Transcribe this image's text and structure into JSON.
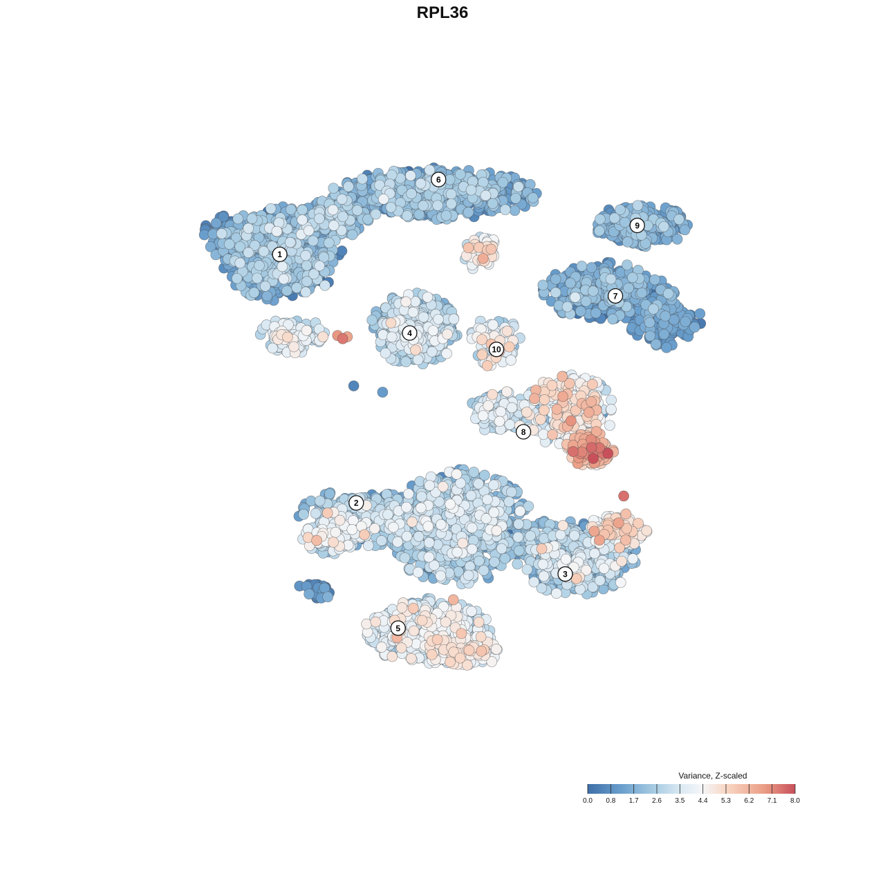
{
  "chart_data": {
    "type": "scatter",
    "title": "RPL36",
    "xlabel": "",
    "ylabel": "",
    "grid": false,
    "axes_visible": false,
    "xlim": [
      0,
      100
    ],
    "ylim": [
      0,
      100
    ],
    "legend": {
      "title": "Variance, Z-scaled",
      "placement": "bottom-right",
      "ticks": [
        "0.0",
        "0.8",
        "1.7",
        "2.6",
        "3.5",
        "4.4",
        "5.3",
        "6.2",
        "7.1",
        "8.0"
      ],
      "range": [
        0,
        8
      ]
    },
    "color_scale": {
      "stops": [
        {
          "value": 0.0,
          "color": "#3e6fa8"
        },
        {
          "value": 1.3,
          "color": "#6a9fcd"
        },
        {
          "value": 2.6,
          "color": "#a9cde3"
        },
        {
          "value": 3.6,
          "color": "#dbe9f3"
        },
        {
          "value": 4.4,
          "color": "#f4f6f8"
        },
        {
          "value": 5.4,
          "color": "#f8d5c2"
        },
        {
          "value": 6.8,
          "color": "#eb9e86"
        },
        {
          "value": 8.0,
          "color": "#c8505b"
        }
      ]
    },
    "clusters": [
      {
        "label": "1",
        "x": 22.0,
        "y": 79.9,
        "value": 1.6
      },
      {
        "label": "2",
        "x": 33.9,
        "y": 40.4,
        "value": 2.4
      },
      {
        "label": "3",
        "x": 66.4,
        "y": 29.1,
        "value": 2.2
      },
      {
        "label": "4",
        "x": 42.2,
        "y": 67.4,
        "value": 2.7
      },
      {
        "label": "5",
        "x": 40.4,
        "y": 20.5,
        "value": 3.0
      },
      {
        "label": "6",
        "x": 46.7,
        "y": 91.8,
        "value": 1.5
      },
      {
        "label": "7",
        "x": 74.2,
        "y": 73.3,
        "value": 1.3
      },
      {
        "label": "8",
        "x": 59.9,
        "y": 51.7,
        "value": 4.8
      },
      {
        "label": "9",
        "x": 77.6,
        "y": 84.5,
        "value": 1.6
      },
      {
        "label": "10",
        "x": 55.7,
        "y": 64.8,
        "value": 3.9
      }
    ],
    "regions": [
      {
        "cluster": "1",
        "cx": 22.0,
        "cy": 80.0,
        "sx": 8.5,
        "sy": 6.5,
        "n": 700,
        "mean": 1.6,
        "sd": 0.8
      },
      {
        "cluster": "1",
        "cx": 17.0,
        "cy": 82.5,
        "sx": 6.5,
        "sy": 3.5,
        "n": 260,
        "mean": 1.1,
        "sd": 0.6
      },
      {
        "cluster": "1",
        "cx": 24.0,
        "cy": 67.0,
        "sx": 4.5,
        "sy": 2.5,
        "n": 110,
        "mean": 3.7,
        "sd": 0.7
      },
      {
        "cluster": "1",
        "cx": 30.0,
        "cy": 85.5,
        "sx": 5.0,
        "sy": 3.0,
        "n": 200,
        "mean": 2.0,
        "sd": 0.8
      },
      {
        "cluster": "6",
        "cx": 46.0,
        "cy": 89.5,
        "sx": 14.0,
        "sy": 3.6,
        "n": 780,
        "mean": 1.5,
        "sd": 0.8
      },
      {
        "cluster": "6",
        "cx": 53.5,
        "cy": 80.0,
        "sx": 2.6,
        "sy": 2.4,
        "n": 60,
        "mean": 3.9,
        "sd": 0.9
      },
      {
        "cluster": "4",
        "cx": 43.0,
        "cy": 68.0,
        "sx": 6.0,
        "sy": 5.0,
        "n": 480,
        "mean": 2.7,
        "sd": 0.7
      },
      {
        "cluster": "10",
        "cx": 55.5,
        "cy": 66.0,
        "sx": 3.5,
        "sy": 3.5,
        "n": 90,
        "mean": 3.9,
        "sd": 0.9
      },
      {
        "cluster": "7",
        "cx": 73.0,
        "cy": 74.0,
        "sx": 9.0,
        "sy": 4.0,
        "n": 460,
        "mean": 1.3,
        "sd": 0.7
      },
      {
        "cluster": "7",
        "cx": 82.0,
        "cy": 69.0,
        "sx": 5.0,
        "sy": 3.5,
        "n": 180,
        "mean": 1.0,
        "sd": 0.5
      },
      {
        "cluster": "9",
        "cx": 78.0,
        "cy": 84.5,
        "sx": 6.5,
        "sy": 3.0,
        "n": 240,
        "mean": 1.5,
        "sd": 0.6
      },
      {
        "cluster": "8",
        "cx": 67.0,
        "cy": 55.0,
        "sx": 6.5,
        "sy": 5.0,
        "n": 300,
        "mean": 3.9,
        "sd": 1.1
      },
      {
        "cluster": "8",
        "cx": 70.5,
        "cy": 49.0,
        "sx": 3.5,
        "sy": 2.5,
        "n": 150,
        "mean": 5.9,
        "sd": 0.9
      },
      {
        "cluster": "8",
        "cx": 56.0,
        "cy": 55.0,
        "sx": 4.0,
        "sy": 3.0,
        "n": 130,
        "mean": 2.9,
        "sd": 0.8
      },
      {
        "cluster": "2",
        "cx": 35.0,
        "cy": 38.0,
        "sx": 9.0,
        "sy": 4.0,
        "n": 360,
        "mean": 2.4,
        "sd": 0.9
      },
      {
        "cluster": "2",
        "cx": 30.0,
        "cy": 35.0,
        "sx": 4.0,
        "sy": 2.5,
        "n": 150,
        "mean": 3.4,
        "sd": 0.8
      },
      {
        "cluster": "2",
        "cx": 27.5,
        "cy": 26.5,
        "sx": 2.5,
        "sy": 1.5,
        "n": 40,
        "mean": 0.8,
        "sd": 0.5
      },
      {
        "cluster": "3",
        "cx": 50.0,
        "cy": 36.5,
        "sx": 10.0,
        "sy": 8.0,
        "n": 900,
        "mean": 2.3,
        "sd": 0.9
      },
      {
        "cluster": "3",
        "cx": 68.0,
        "cy": 32.0,
        "sx": 8.5,
        "sy": 5.5,
        "n": 500,
        "mean": 2.4,
        "sd": 0.9
      },
      {
        "cluster": "3",
        "cx": 74.5,
        "cy": 36.0,
        "sx": 4.0,
        "sy": 2.5,
        "n": 140,
        "mean": 4.4,
        "sd": 0.9
      },
      {
        "cluster": "5",
        "cx": 45.0,
        "cy": 20.0,
        "sx": 8.5,
        "sy": 4.5,
        "n": 600,
        "mean": 3.2,
        "sd": 0.9
      },
      {
        "cluster": "5",
        "cx": 50.5,
        "cy": 17.0,
        "sx": 5.0,
        "sy": 2.5,
        "n": 180,
        "mean": 4.1,
        "sd": 0.7
      }
    ],
    "outliers": [
      {
        "x": 31.0,
        "y": 67.0,
        "value": 6.9
      },
      {
        "x": 31.8,
        "y": 66.5,
        "value": 7.4
      },
      {
        "x": 32.5,
        "y": 66.8,
        "value": 6.6
      },
      {
        "x": 70.5,
        "y": 49.2,
        "value": 7.6
      },
      {
        "x": 69.0,
        "y": 48.5,
        "value": 7.2
      },
      {
        "x": 75.5,
        "y": 41.5,
        "value": 7.5
      },
      {
        "x": 49.0,
        "y": 25.0,
        "value": 6.2
      },
      {
        "x": 53.0,
        "y": 81.0,
        "value": 5.6
      },
      {
        "x": 33.5,
        "y": 59.0,
        "value": 0.6
      },
      {
        "x": 38.0,
        "y": 58.0,
        "value": 1.2
      }
    ]
  }
}
